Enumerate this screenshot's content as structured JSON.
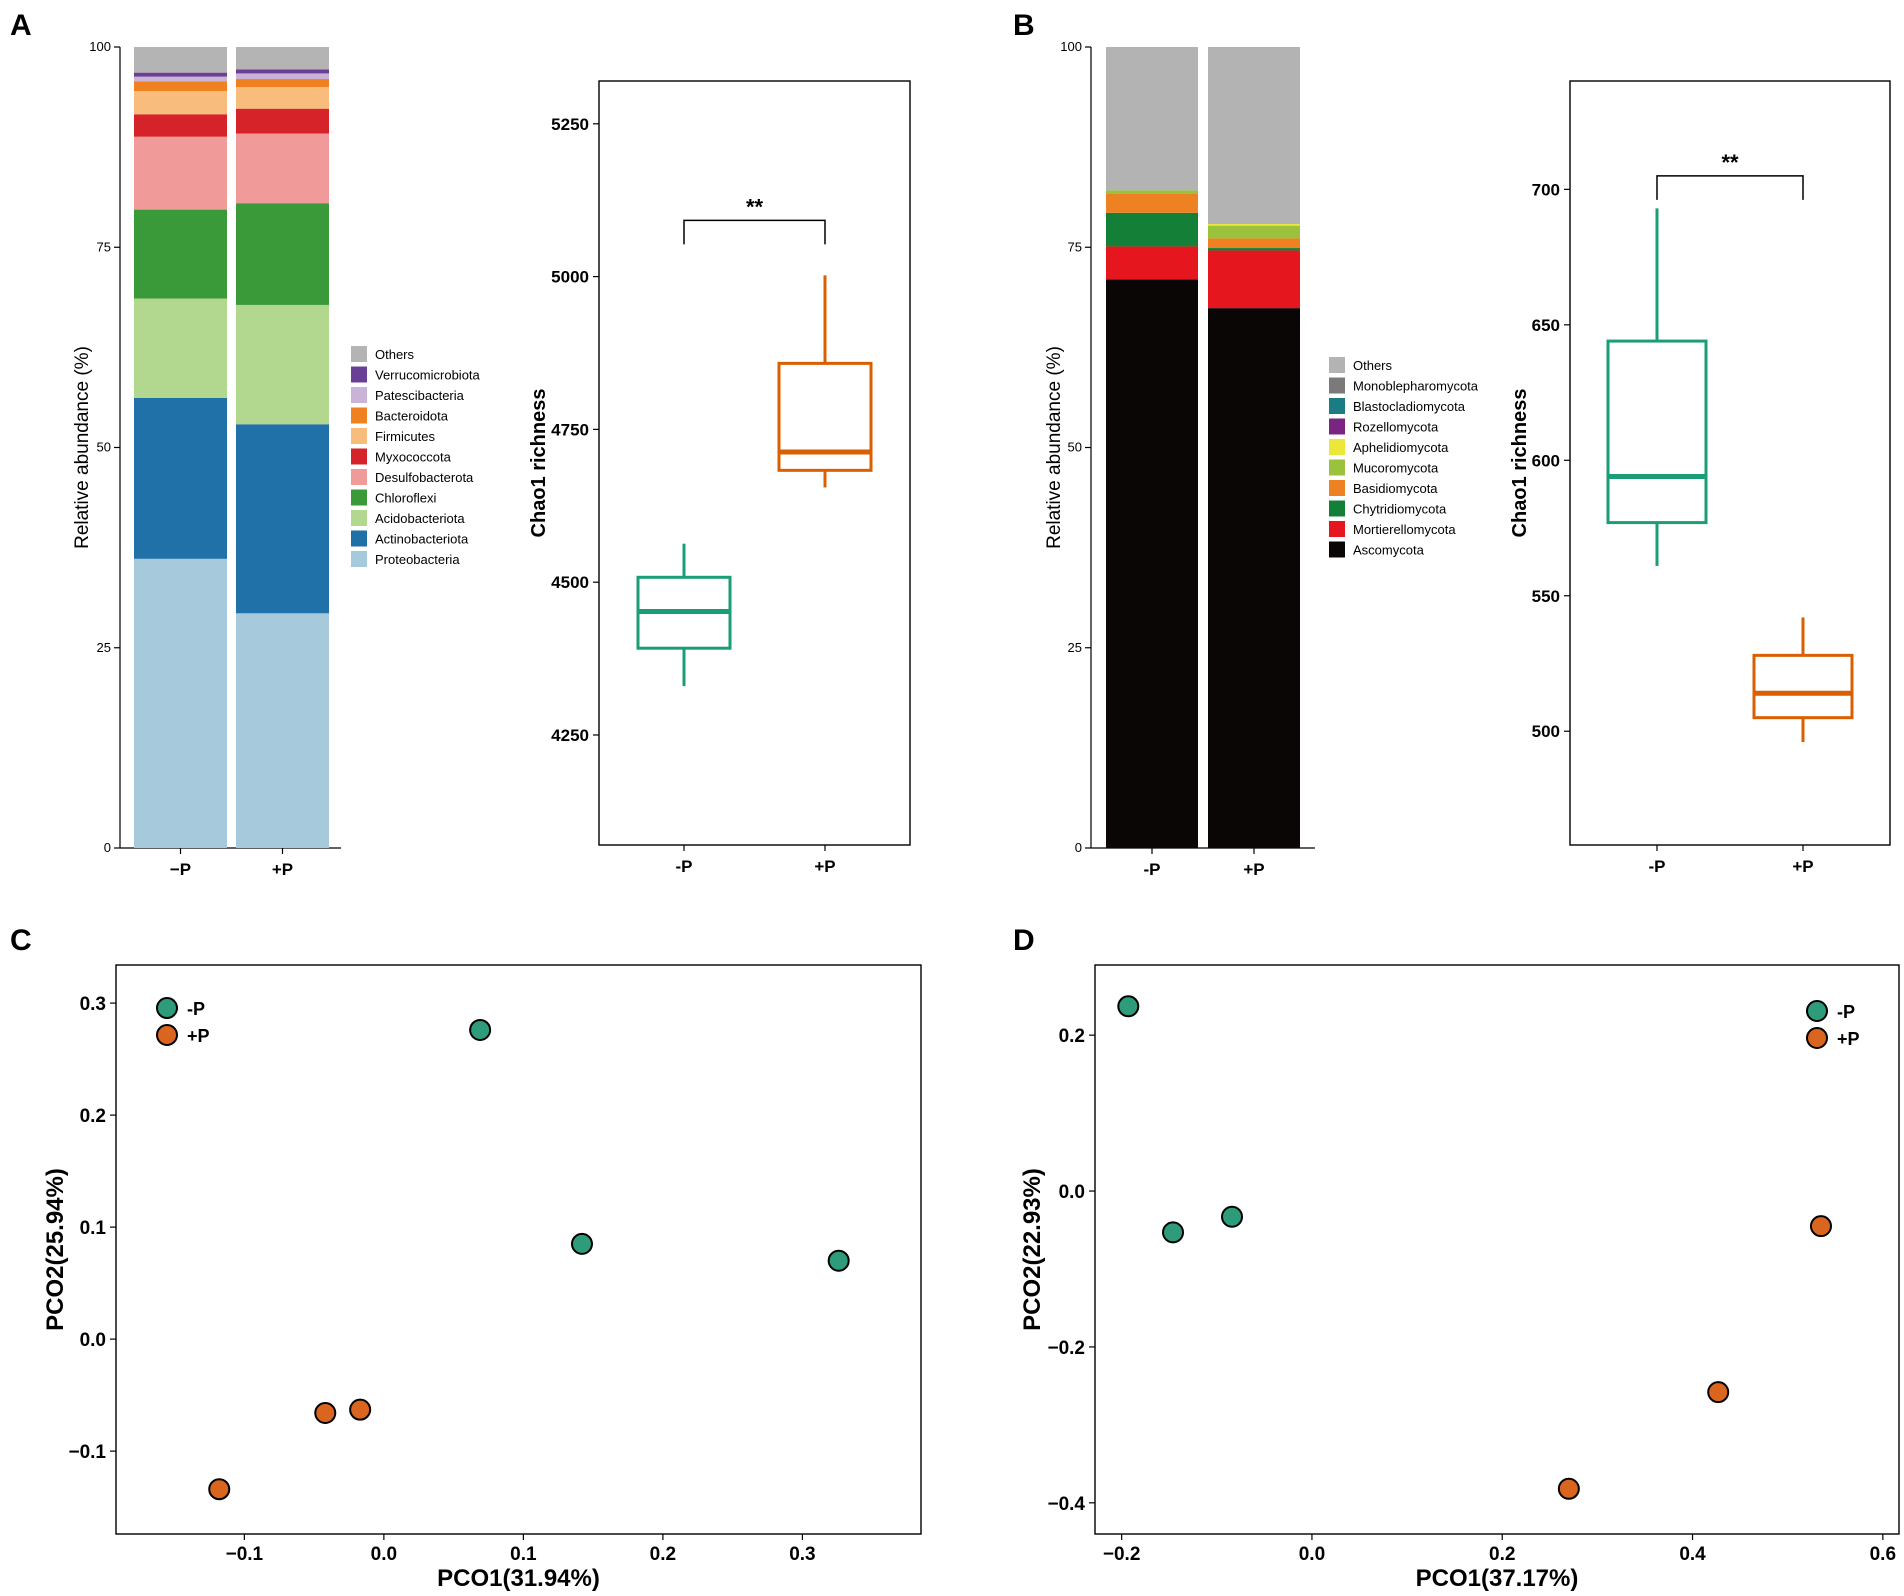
{
  "colors": {
    "minusP": "#1b9e77",
    "plusP": "#d95f02",
    "pcoa_minusP": "#2e9c7b",
    "pcoa_plusP": "#d9651f"
  },
  "chart_data": [
    {
      "panel": "A",
      "type": "bar",
      "stacked": true,
      "ylabel": "Relative abundance (%)",
      "ylim": [
        0,
        100
      ],
      "yticks": [
        "0",
        "25",
        "50",
        "75",
        "100"
      ],
      "categories": [
        "−P",
        "+P"
      ],
      "legend_title": "",
      "series": [
        {
          "name": "Proteobacteria",
          "color": "#a6cadc",
          "values": [
            36.1,
            29.3
          ]
        },
        {
          "name": "Actinobacteriota",
          "color": "#2171a9",
          "values": [
            20.1,
            23.6
          ]
        },
        {
          "name": "Acidobacteriota",
          "color": "#b2d78e",
          "values": [
            12.4,
            14.9
          ]
        },
        {
          "name": "Chloroflexi",
          "color": "#3a9a3a",
          "values": [
            11.1,
            12.7
          ]
        },
        {
          "name": "Desulfobacterota",
          "color": "#f09a99",
          "values": [
            9.1,
            8.7
          ]
        },
        {
          "name": "Myxococcota",
          "color": "#d62329",
          "values": [
            2.8,
            3.1
          ]
        },
        {
          "name": "Firmicutes",
          "color": "#f8bd7c",
          "values": [
            2.9,
            2.7
          ]
        },
        {
          "name": "Bacteroidota",
          "color": "#ef8120",
          "values": [
            1.2,
            1.0
          ]
        },
        {
          "name": "Patescibacteria",
          "color": "#c9b3d6",
          "values": [
            0.6,
            0.7
          ]
        },
        {
          "name": "Verrucomicrobiota",
          "color": "#6a4096",
          "values": [
            0.5,
            0.5
          ]
        },
        {
          "name": "Others",
          "color": "#b4b4b4",
          "values": [
            3.2,
            2.8
          ]
        }
      ]
    },
    {
      "panel": "A",
      "type": "boxplot",
      "ylabel": "Chao1 richness",
      "ylim": [
        4070,
        5320
      ],
      "yticks": [
        "4250",
        "4500",
        "4750",
        "5000",
        "5250"
      ],
      "categories": [
        "-P",
        "+P"
      ],
      "boxes": [
        {
          "name": "-P",
          "min": 4330,
          "q1": 4392,
          "median": 4452,
          "q3": 4508,
          "max": 4563
        },
        {
          "name": "+P",
          "min": 4655,
          "q1": 4683,
          "median": 4713,
          "q3": 4858,
          "max": 5002
        }
      ],
      "significance": {
        "label": "**",
        "y": 5092
      }
    },
    {
      "panel": "B",
      "type": "bar",
      "stacked": true,
      "ylabel": "Relative abundance (%)",
      "ylim": [
        0,
        100
      ],
      "yticks": [
        "0",
        "25",
        "50",
        "75",
        "100"
      ],
      "categories": [
        "-P",
        "+P"
      ],
      "series": [
        {
          "name": "Ascomycota",
          "color": "#0a0606",
          "values": [
            71.0,
            67.4
          ]
        },
        {
          "name": "Mortierellomycota",
          "color": "#e5161d",
          "values": [
            4.1,
            7.2
          ]
        },
        {
          "name": "Chytridiomycota",
          "color": "#148037",
          "values": [
            4.2,
            0.3
          ]
        },
        {
          "name": "Basidiomycota",
          "color": "#ee8122",
          "values": [
            2.4,
            1.2
          ]
        },
        {
          "name": "Mucoromycota",
          "color": "#9ac23c",
          "values": [
            0.4,
            1.6
          ]
        },
        {
          "name": "Aphelidiomycota",
          "color": "#ece83a",
          "values": [
            0.0,
            0.2
          ]
        },
        {
          "name": "Rozellomycota",
          "color": "#7b2582",
          "values": [
            0.0,
            0.0
          ]
        },
        {
          "name": "Blastocladiomycota",
          "color": "#1a7c84",
          "values": [
            0.0,
            0.0
          ]
        },
        {
          "name": "Monoblepharomycota",
          "color": "#7a7a7a",
          "values": [
            0.0,
            0.0
          ]
        },
        {
          "name": "Others",
          "color": "#b3b3b3",
          "values": [
            17.9,
            22.1
          ]
        }
      ]
    },
    {
      "panel": "B",
      "type": "boxplot",
      "ylabel": "Chao1 richness",
      "ylim": [
        458,
        740
      ],
      "yticks": [
        "500",
        "550",
        "600",
        "650",
        "700"
      ],
      "categories": [
        "-P",
        "+P"
      ],
      "boxes": [
        {
          "name": "-P",
          "min": 561,
          "q1": 577,
          "median": 594,
          "q3": 644,
          "max": 693
        },
        {
          "name": "+P",
          "min": 496,
          "q1": 505,
          "median": 514,
          "q3": 528,
          "max": 542
        }
      ],
      "significance": {
        "label": "**",
        "y": 705
      }
    },
    {
      "panel": "C",
      "type": "scatter",
      "xlabel": "PCO1(31.94%)",
      "ylabel": "PCO2(25.94%)",
      "xlim": [
        -0.192,
        0.385
      ],
      "ylim": [
        -0.174,
        0.334
      ],
      "xticks": [
        "−0.1",
        "0.0",
        "0.1",
        "0.2",
        "0.3"
      ],
      "xtick_values": [
        -0.1,
        0.0,
        0.1,
        0.2,
        0.3
      ],
      "yticks": [
        "−0.1",
        "0.0",
        "0.1",
        "0.2",
        "0.3"
      ],
      "ytick_values": [
        -0.1,
        0.0,
        0.1,
        0.2,
        0.3
      ],
      "legend_position": "top-left",
      "series": [
        {
          "name": "-P",
          "points": [
            [
              0.069,
              0.276
            ],
            [
              0.142,
              0.085
            ],
            [
              0.326,
              0.07
            ]
          ]
        },
        {
          "name": "+P",
          "points": [
            [
              -0.118,
              -0.134
            ],
            [
              -0.042,
              -0.066
            ],
            [
              -0.017,
              -0.063
            ]
          ]
        }
      ]
    },
    {
      "panel": "D",
      "type": "scatter",
      "xlabel": "PCO1(37.17%)",
      "ylabel": "PCO2(22.93%)",
      "xlim": [
        -0.228,
        0.617
      ],
      "ylim": [
        -0.44,
        0.29
      ],
      "xticks": [
        "−0.2",
        "0.0",
        "0.2",
        "0.4",
        "0.6"
      ],
      "xtick_values": [
        -0.2,
        0.0,
        0.2,
        0.4,
        0.6
      ],
      "yticks": [
        "−0.4",
        "−0.2",
        "0.0",
        "0.2"
      ],
      "ytick_values": [
        -0.4,
        -0.2,
        0.0,
        0.2
      ],
      "legend_position": "top-right",
      "series": [
        {
          "name": "-P",
          "points": [
            [
              -0.193,
              0.237
            ],
            [
              -0.146,
              -0.053
            ],
            [
              -0.084,
              -0.033
            ]
          ]
        },
        {
          "name": "+P",
          "points": [
            [
              0.27,
              -0.382
            ],
            [
              0.427,
              -0.258
            ],
            [
              0.535,
              -0.045
            ]
          ]
        }
      ]
    }
  ]
}
